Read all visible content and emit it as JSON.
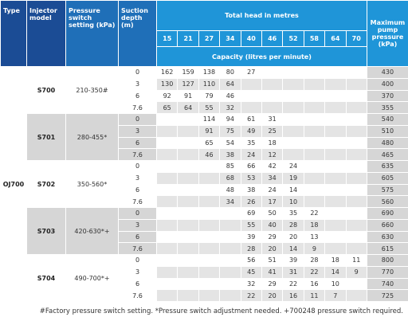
{
  "header": {
    "type": "Type",
    "model": "Injector model",
    "pressure_setting": "Pressure switch setting (kPa)",
    "suction": "Suction depth (m)",
    "total_head": "Total head in metres",
    "heads": [
      15,
      21,
      27,
      34,
      40,
      46,
      52,
      58,
      64,
      70
    ],
    "capacity": "Capacity (litres per minute)",
    "max_pressure": "Maximum pump pressure (kPa)"
  },
  "type": "OJ700",
  "groups": [
    {
      "model": "S700",
      "pressure_setting": "210-350#",
      "rows": [
        {
          "suction": 0,
          "capacities": [
            162,
            159,
            138,
            80,
            27,
            null,
            null,
            null,
            null,
            null
          ],
          "max_pressure": 430
        },
        {
          "suction": 3,
          "capacities": [
            130,
            127,
            110,
            64,
            null,
            null,
            null,
            null,
            null,
            null
          ],
          "max_pressure": 400
        },
        {
          "suction": 6,
          "capacities": [
            92,
            91,
            79,
            46,
            null,
            null,
            null,
            null,
            null,
            null
          ],
          "max_pressure": 370
        },
        {
          "suction": 7.6,
          "capacities": [
            65,
            64,
            55,
            32,
            null,
            null,
            null,
            null,
            null,
            null
          ],
          "max_pressure": 355
        }
      ]
    },
    {
      "model": "S701",
      "pressure_setting": "280-455*",
      "rows": [
        {
          "suction": 0,
          "capacities": [
            null,
            null,
            114,
            94,
            61,
            31,
            null,
            null,
            null,
            null
          ],
          "max_pressure": 540
        },
        {
          "suction": 3,
          "capacities": [
            null,
            null,
            91,
            75,
            49,
            25,
            null,
            null,
            null,
            null
          ],
          "max_pressure": 510
        },
        {
          "suction": 6,
          "capacities": [
            null,
            null,
            65,
            54,
            35,
            18,
            null,
            null,
            null,
            null
          ],
          "max_pressure": 480
        },
        {
          "suction": 7.6,
          "capacities": [
            null,
            null,
            46,
            38,
            24,
            12,
            null,
            null,
            null,
            null
          ],
          "max_pressure": 465
        }
      ]
    },
    {
      "model": "S702",
      "pressure_setting": "350-560*",
      "rows": [
        {
          "suction": 0,
          "capacities": [
            null,
            null,
            null,
            85,
            66,
            42,
            24,
            null,
            null,
            null
          ],
          "max_pressure": 635
        },
        {
          "suction": 3,
          "capacities": [
            null,
            null,
            null,
            68,
            53,
            34,
            19,
            null,
            null,
            null
          ],
          "max_pressure": 605
        },
        {
          "suction": 6,
          "capacities": [
            null,
            null,
            null,
            48,
            38,
            24,
            14,
            null,
            null,
            null
          ],
          "max_pressure": 575
        },
        {
          "suction": 7.6,
          "capacities": [
            null,
            null,
            null,
            34,
            26,
            17,
            10,
            null,
            null,
            null
          ],
          "max_pressure": 560
        }
      ]
    },
    {
      "model": "S703",
      "pressure_setting": "420-630*+",
      "rows": [
        {
          "suction": 0,
          "capacities": [
            null,
            null,
            null,
            null,
            69,
            50,
            35,
            22,
            null,
            null
          ],
          "max_pressure": 690
        },
        {
          "suction": 3,
          "capacities": [
            null,
            null,
            null,
            null,
            55,
            40,
            28,
            18,
            null,
            null
          ],
          "max_pressure": 660
        },
        {
          "suction": 6,
          "capacities": [
            null,
            null,
            null,
            null,
            39,
            29,
            20,
            13,
            null,
            null
          ],
          "max_pressure": 630
        },
        {
          "suction": 7.6,
          "capacities": [
            null,
            null,
            null,
            null,
            28,
            20,
            14,
            9,
            null,
            null
          ],
          "max_pressure": 615
        }
      ]
    },
    {
      "model": "S704",
      "pressure_setting": "490-700*+",
      "rows": [
        {
          "suction": 0,
          "capacities": [
            null,
            null,
            null,
            null,
            56,
            51,
            39,
            28,
            18,
            11
          ],
          "max_pressure": 800
        },
        {
          "suction": 3,
          "capacities": [
            null,
            null,
            null,
            null,
            45,
            41,
            31,
            22,
            14,
            9
          ],
          "max_pressure": 770
        },
        {
          "suction": 6,
          "capacities": [
            null,
            null,
            null,
            null,
            32,
            29,
            22,
            16,
            10,
            null
          ],
          "max_pressure": 740
        },
        {
          "suction": 7.6,
          "capacities": [
            null,
            null,
            null,
            null,
            22,
            20,
            16,
            11,
            7,
            null
          ],
          "max_pressure": 725
        }
      ]
    }
  ],
  "footnote": "#Factory pressure switch setting. *Pressure switch adjustment needed. +700248 pressure switch required."
}
